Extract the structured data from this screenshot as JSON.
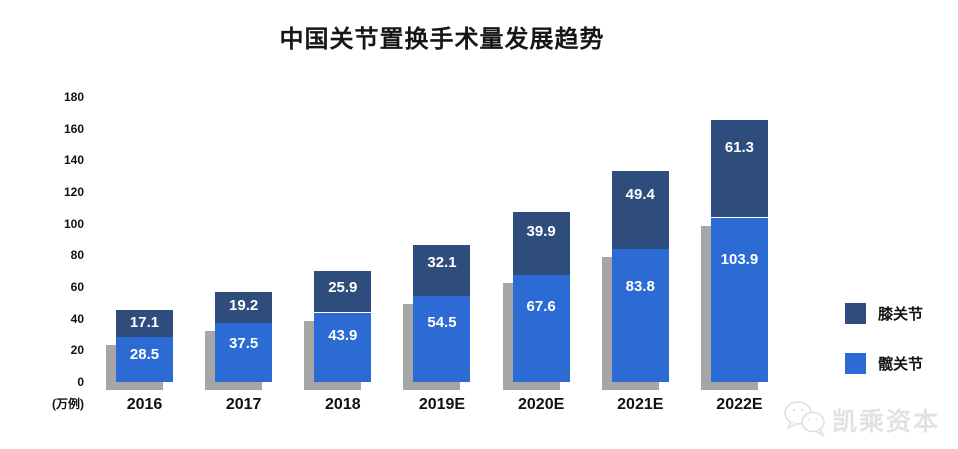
{
  "title": "中国关节置换手术量发展趋势",
  "chart_data": {
    "type": "bar",
    "stacked": true,
    "title": "中国关节置换手术量发展趋势",
    "categories": [
      "2016",
      "2017",
      "2018",
      "2019E",
      "2020E",
      "2021E",
      "2022E"
    ],
    "series": [
      {
        "name": "髋关节",
        "color": "#2b6bd3",
        "values": [
          28.5,
          37.5,
          43.9,
          54.5,
          67.6,
          83.8,
          103.9
        ]
      },
      {
        "name": "膝关节",
        "color": "#2e4d7d",
        "values": [
          17.1,
          19.2,
          25.9,
          32.1,
          39.9,
          49.4,
          61.3
        ]
      }
    ],
    "ylabel": "(万例)",
    "ylim": [
      0,
      180
    ],
    "yticks": [
      0,
      20,
      40,
      60,
      80,
      100,
      120,
      140,
      160,
      180
    ],
    "grid": false,
    "legend_position": "right",
    "bar_shadow_color": "#a6a6a6",
    "value_label_color": "#ffffff"
  },
  "legend": {
    "items": [
      {
        "label": "膝关节",
        "color": "#2e4d7d"
      },
      {
        "label": "髋关节",
        "color": "#2b6bd3"
      }
    ]
  },
  "watermark": {
    "text": "凯乘资本",
    "icon": "wechat-bubbles-icon",
    "color": "#e2e2e2"
  }
}
